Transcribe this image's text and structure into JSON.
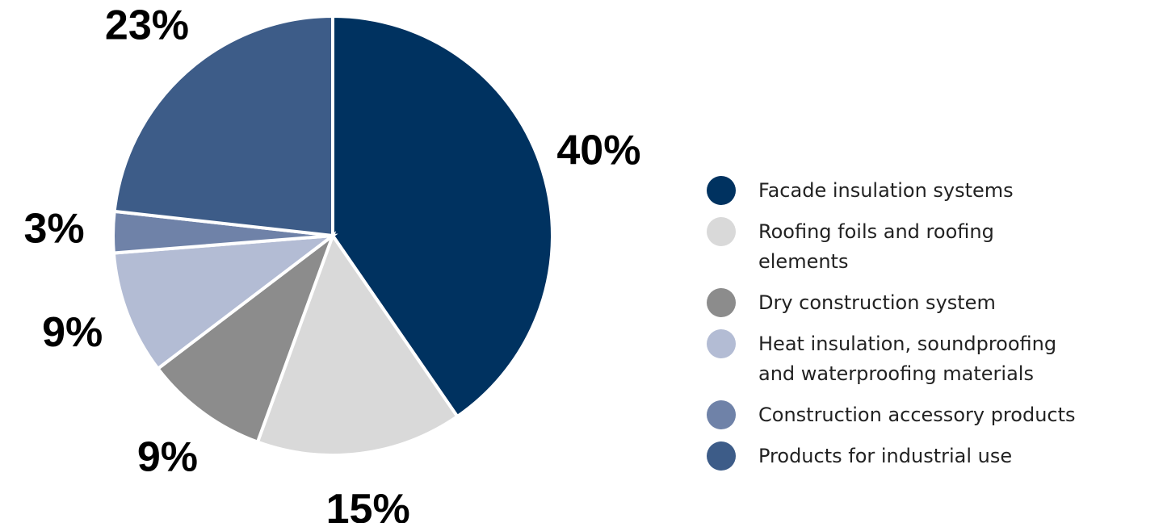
{
  "chart_data": {
    "type": "pie",
    "categories": [
      "Facade insulation systems",
      "Roofing foils and roofing elements",
      "Dry construction system",
      "Heat insulation, soundproofing and waterproofing materials",
      "Construction accessory products",
      "Products for industrial use"
    ],
    "values": [
      40,
      15,
      9,
      9,
      3,
      23
    ],
    "value_labels": [
      "40%",
      "15%",
      "9%",
      "9%",
      "3%",
      "23%"
    ],
    "colors": [
      "#003260",
      "#d9d9d9",
      "#8c8c8c",
      "#b3bcd4",
      "#6f82a8",
      "#3d5c88"
    ]
  }
}
